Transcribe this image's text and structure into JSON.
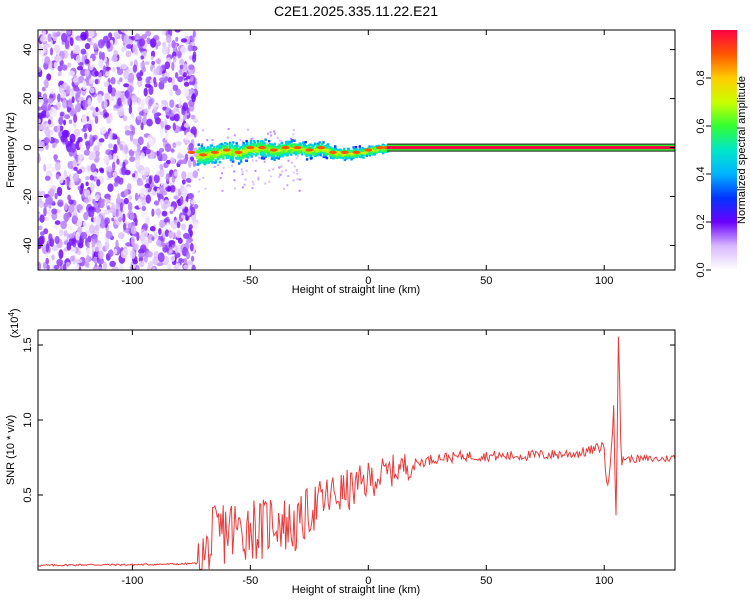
{
  "title": "C2E1.2025.335.11.22.E21",
  "chart_data": [
    {
      "type": "heatmap",
      "xlabel": "Height of straight line (km)",
      "ylabel": "Frequency (Hz)",
      "xlim": [
        -140,
        130
      ],
      "ylim": [
        -50,
        48
      ],
      "xticks": [
        -100,
        -50,
        0,
        50,
        100
      ],
      "yticks": [
        -40,
        -20,
        0,
        20,
        40
      ],
      "colorbar": {
        "label": "Normalized spectral amplitude",
        "range": [
          0,
          1
        ],
        "ticks": [
          "0.0",
          "0.2",
          "0.4",
          "0.6",
          "0.8"
        ],
        "tick_values": [
          0,
          0.2,
          0.4,
          0.6,
          0.8
        ]
      },
      "regions": [
        {
          "description": "scattered noise",
          "x_range": [
            -140,
            -73
          ],
          "freq_range": [
            -50,
            48
          ],
          "amplitude_range": [
            0.0,
            0.2
          ]
        },
        {
          "description": "noisy band",
          "x_range": [
            -73,
            8
          ],
          "freq_range": [
            -8,
            6
          ],
          "amplitude_range": [
            0.2,
            0.8
          ]
        },
        {
          "description": "steady tone",
          "x_range": [
            8,
            130
          ],
          "freq": 0,
          "amplitude": 1.0
        }
      ],
      "line_points": [
        [
          -75,
          -2
        ],
        [
          -70,
          -3
        ],
        [
          -65,
          -2
        ],
        [
          -60,
          -1
        ],
        [
          -55,
          -2
        ],
        [
          -50,
          0
        ],
        [
          -45,
          0
        ],
        [
          -40,
          -1
        ],
        [
          -35,
          0
        ],
        [
          -30,
          0
        ],
        [
          -25,
          -1
        ],
        [
          -20,
          0
        ],
        [
          -15,
          -2
        ],
        [
          -10,
          -2
        ],
        [
          -5,
          -2
        ],
        [
          0,
          -1
        ],
        [
          5,
          0
        ],
        [
          8,
          0
        ]
      ]
    },
    {
      "type": "line",
      "xlabel": "Height of straight line (km)",
      "ylabel": "SNR (10 * v/v)",
      "y_multiplier": "(x10",
      "y_multiplier_exp": "4",
      "y_multiplier_close": ")",
      "xlim": [
        -140,
        130
      ],
      "ylim": [
        0,
        16000
      ],
      "xticks": [
        -100,
        -50,
        0,
        50,
        100
      ],
      "yticks": [
        5000,
        10000,
        15000
      ],
      "ytick_labels": [
        "0.5",
        "1.0",
        "1.5"
      ],
      "color": "#e83b3b",
      "series": [
        {
          "x": [
            -140,
            -120,
            -100,
            -80,
            -72,
            -68,
            -65,
            -60,
            -55,
            -50,
            -45,
            -40,
            -35,
            -30,
            -25,
            -20,
            -15,
            -10,
            -5,
            0,
            5,
            10,
            15,
            20,
            25,
            30,
            35,
            40,
            50,
            60,
            70,
            80,
            90,
            95,
            100,
            102,
            104,
            105,
            106,
            107,
            108,
            110,
            115,
            120,
            125,
            130
          ],
          "y": [
            300,
            350,
            350,
            400,
            450,
            1000,
            2000,
            2800,
            2500,
            3000,
            2600,
            3500,
            3000,
            2800,
            4000,
            4500,
            5000,
            5200,
            5500,
            6000,
            6300,
            6600,
            6900,
            7100,
            7300,
            7500,
            7500,
            7600,
            7600,
            7600,
            7650,
            7700,
            7800,
            8000,
            8300,
            5000,
            12000,
            4000,
            15500,
            8000,
            7500,
            7400,
            7400,
            7400,
            7400,
            7500
          ]
        }
      ]
    }
  ]
}
